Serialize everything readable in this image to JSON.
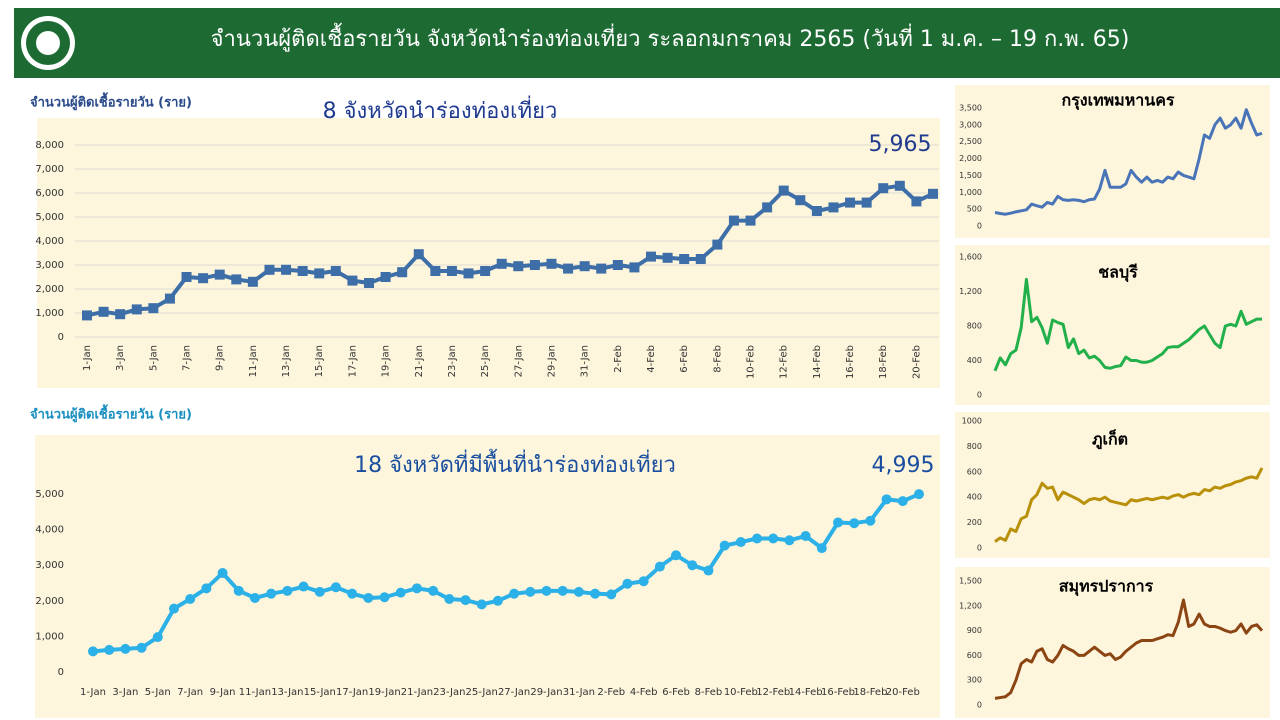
{
  "header": {
    "title": "จำนวนผู้ติดเชื้อรายวัน  จังหวัดนำร่องท่องเที่ยว ระลอกมกราคม 2565 (วันที่ 1 ม.ค. – 19 ก.พ. 65)"
  },
  "chart_data": [
    {
      "type": "line",
      "title": "8 จังหวัดนำร่องท่องเที่ยว",
      "y_label": "จำนวนผู้ติดเชื้อรายวัน (ราย)",
      "color": "#3d6ea8",
      "marker": "square",
      "categories": [
        "1-Jan",
        null,
        "3-Jan",
        null,
        "5-Jan",
        null,
        "7-Jan",
        null,
        "9-Jan",
        null,
        "11-Jan",
        null,
        "13-Jan",
        null,
        "15-Jan",
        null,
        "17-Jan",
        null,
        "19-Jan",
        null,
        "21-Jan",
        null,
        "23-Jan",
        null,
        "25-Jan",
        null,
        "27-Jan",
        null,
        "29-Jan",
        null,
        "31-Jan",
        null,
        "2-Feb",
        null,
        "4-Feb",
        null,
        "6-Feb",
        null,
        "8-Feb",
        null,
        "10-Feb",
        null,
        "12-Feb",
        null,
        "14-Feb",
        null,
        "16-Feb",
        null,
        "18-Feb",
        null,
        "20-Feb",
        null
      ],
      "values": [
        900,
        1050,
        950,
        1150,
        1200,
        1600,
        2500,
        2450,
        2600,
        2400,
        2300,
        2800,
        2800,
        2750,
        2650,
        2750,
        2350,
        2250,
        2500,
        2700,
        3450,
        2750,
        2750,
        2650,
        2750,
        3050,
        2950,
        3000,
        3050,
        2850,
        2950,
        2850,
        3000,
        2900,
        3350,
        3300,
        3250,
        3250,
        3850,
        4850,
        4850,
        5400,
        6100,
        5700,
        5250,
        5400,
        5600,
        5600,
        6200,
        6300,
        5650,
        5965
      ],
      "value_labels": [
        null,
        null,
        null,
        null,
        null,
        null,
        null,
        null,
        null,
        null,
        null,
        null,
        null,
        null,
        null,
        null,
        null,
        null,
        null,
        null,
        null,
        null,
        null,
        null,
        null,
        null,
        null,
        null,
        null,
        null,
        null,
        null,
        null,
        null,
        null,
        null,
        null,
        null,
        null,
        null,
        null,
        null,
        null,
        null,
        null,
        null,
        null,
        null,
        null,
        null,
        null,
        "5,965"
      ],
      "ylim": [
        0,
        8000
      ],
      "yticks": [
        0,
        {
          "value": 1000,
          "label": "1,000"
        },
        {
          "value": 2000,
          "label": "2,000"
        },
        {
          "value": 3000,
          "label": "3,000"
        },
        {
          "value": 4000,
          "label": "4,000"
        },
        {
          "value": 5000,
          "label": "5,000"
        },
        {
          "value": 6000,
          "label": "6,000"
        },
        {
          "value": 7000,
          "label": "7,000"
        },
        {
          "value": 8000,
          "label": "8,000"
        }
      ],
      "grid": true
    },
    {
      "type": "line",
      "title": "18 จังหวัดที่มีพื้นที่นำร่องท่องเที่ยว",
      "y_label": "จำนวนผู้ติดเชื้อรายวัน (ราย)",
      "color": "#2bb0e8",
      "marker": "circle",
      "categories": [
        "1-Jan",
        null,
        "3-Jan",
        null,
        "5-Jan",
        null,
        "7-Jan",
        null,
        "9-Jan",
        null,
        "11-Jan",
        null,
        "13-Jan",
        null,
        "15-Jan",
        null,
        "17-Jan",
        null,
        "19-Jan",
        null,
        "21-Jan",
        null,
        "23-Jan",
        null,
        "25-Jan",
        null,
        "27-Jan",
        null,
        "29-Jan",
        null,
        "31-Jan",
        null,
        "2-Feb",
        null,
        "4-Feb",
        null,
        "6-Feb",
        null,
        "8-Feb",
        null,
        "10-Feb",
        null,
        "12-Feb",
        null,
        "14-Feb",
        null,
        "16-Feb",
        null,
        "18-Feb",
        null,
        "20-Feb",
        null
      ],
      "values": [
        580,
        620,
        650,
        680,
        980,
        1780,
        2050,
        2350,
        2780,
        2280,
        2080,
        2200,
        2280,
        2400,
        2250,
        2380,
        2200,
        2080,
        2100,
        2230,
        2350,
        2280,
        2050,
        2020,
        1900,
        2000,
        2200,
        2250,
        2280,
        2280,
        2250,
        2200,
        2180,
        2480,
        2550,
        2960,
        3280,
        3000,
        2850,
        3550,
        3650,
        3750,
        3750,
        3700,
        3820,
        3480,
        4200,
        4180,
        4250,
        4850,
        4800,
        4995
      ],
      "value_labels": [
        null,
        null,
        null,
        null,
        null,
        null,
        null,
        null,
        null,
        null,
        null,
        null,
        null,
        null,
        null,
        null,
        null,
        null,
        null,
        null,
        null,
        null,
        null,
        null,
        null,
        null,
        null,
        null,
        null,
        null,
        null,
        null,
        null,
        null,
        null,
        null,
        null,
        null,
        null,
        null,
        null,
        null,
        null,
        null,
        null,
        null,
        null,
        null,
        null,
        null,
        null,
        "4,995"
      ],
      "ylim": [
        0,
        5000
      ],
      "yticks": [
        0,
        {
          "value": 1000,
          "label": "1,000"
        },
        {
          "value": 2000,
          "label": "2,000"
        },
        {
          "value": 3000,
          "label": "3,000"
        },
        {
          "value": 4000,
          "label": "4,000"
        },
        {
          "value": 5000,
          "label": "5,000"
        }
      ],
      "grid": false
    },
    {
      "type": "line",
      "title": "กรุงเทพมหานคร",
      "color": "#4a74b8",
      "values": [
        400,
        370,
        350,
        380,
        420,
        450,
        480,
        650,
        600,
        560,
        700,
        650,
        880,
        780,
        760,
        780,
        760,
        720,
        780,
        800,
        1100,
        1650,
        1150,
        1150,
        1150,
        1250,
        1650,
        1450,
        1300,
        1450,
        1300,
        1350,
        1300,
        1450,
        1400,
        1600,
        1500,
        1450,
        1400,
        2000,
        2700,
        2600,
        3000,
        3200,
        2900,
        3000,
        3200,
        2900,
        3450,
        3050,
        2700,
        2750
      ],
      "ylim": [
        0,
        3500
      ],
      "yticks": [
        0,
        500,
        {
          "value": 1000,
          "label": "1,000"
        },
        {
          "value": 1500,
          "label": "1,500"
        },
        {
          "value": 2000,
          "label": "2,000"
        },
        {
          "value": 2500,
          "label": "2,500"
        },
        {
          "value": 3000,
          "label": "3,000"
        },
        {
          "value": 3500,
          "label": "3,500"
        }
      ],
      "grid": false
    },
    {
      "type": "line",
      "title": "ชลบุรี",
      "color": "#22b04b",
      "values": [
        280,
        430,
        350,
        480,
        520,
        780,
        1340,
        850,
        900,
        780,
        600,
        870,
        840,
        820,
        550,
        650,
        480,
        520,
        430,
        450,
        400,
        320,
        310,
        330,
        340,
        440,
        400,
        400,
        380,
        380,
        400,
        440,
        480,
        550,
        560,
        560,
        600,
        640,
        700,
        760,
        800,
        700,
        600,
        550,
        800,
        820,
        800,
        970,
        820,
        850,
        880,
        880
      ],
      "ylim": [
        0,
        1600
      ],
      "yticks": [
        0,
        400,
        800,
        {
          "value": 1200,
          "label": "1,200"
        },
        {
          "value": 1600,
          "label": "1,600"
        }
      ],
      "grid": false
    },
    {
      "type": "line",
      "title": "ภูเก็ต",
      "color": "#b8900a",
      "values": [
        50,
        80,
        60,
        150,
        130,
        230,
        250,
        380,
        420,
        510,
        470,
        480,
        380,
        440,
        420,
        400,
        380,
        350,
        380,
        390,
        380,
        400,
        370,
        360,
        350,
        340,
        380,
        370,
        380,
        390,
        380,
        390,
        400,
        390,
        410,
        420,
        400,
        420,
        430,
        420,
        460,
        450,
        480,
        470,
        490,
        500,
        520,
        530,
        550,
        560,
        550,
        630
      ],
      "ylim": [
        0,
        1000
      ],
      "yticks": [
        0,
        200,
        400,
        600,
        800,
        1000
      ],
      "grid": false
    },
    {
      "type": "line",
      "title": "สมุทรปราการ",
      "color": "#8b4513",
      "values": [
        80,
        90,
        100,
        150,
        300,
        500,
        550,
        520,
        650,
        680,
        550,
        520,
        600,
        720,
        680,
        650,
        600,
        600,
        650,
        700,
        650,
        600,
        620,
        550,
        580,
        650,
        700,
        750,
        780,
        780,
        780,
        800,
        820,
        850,
        840,
        1000,
        1270,
        950,
        980,
        1100,
        980,
        950,
        950,
        930,
        900,
        880,
        900,
        980,
        870,
        950,
        970,
        900
      ],
      "ylim": [
        0,
        1500
      ],
      "yticks": [
        0,
        300,
        600,
        900,
        {
          "value": 1200,
          "label": "1,200"
        },
        {
          "value": 1500,
          "label": "1,500"
        }
      ],
      "grid": false
    }
  ]
}
